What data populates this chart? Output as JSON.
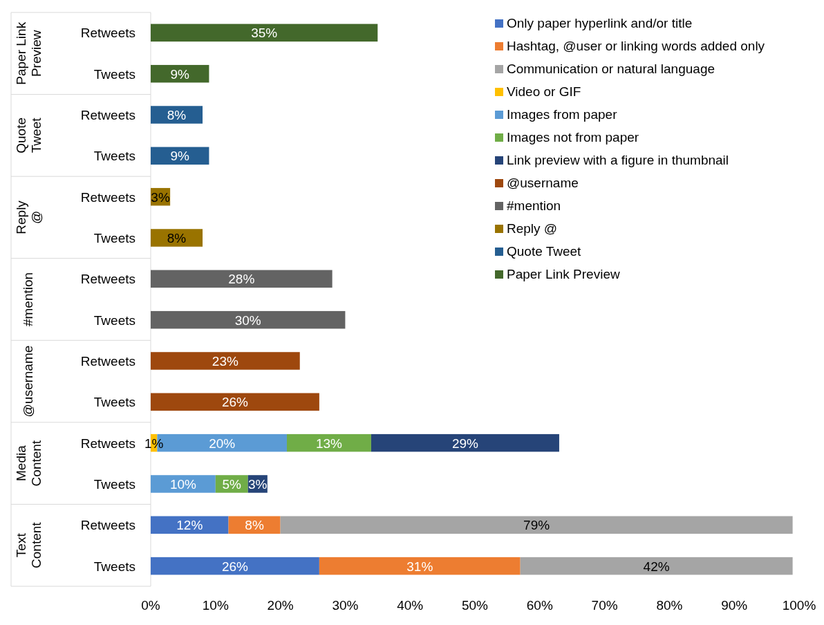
{
  "chart_data": {
    "type": "bar",
    "orientation": "horizontal",
    "stacked": true,
    "grid": false,
    "legend": "top right",
    "categories": [
      "Retweets",
      "Tweets",
      "Retweets",
      "Tweets",
      "Retweets",
      "Tweets",
      "Retweets",
      "Tweets",
      "Retweets",
      "Tweets",
      "Retweets",
      "Tweets",
      "Retweets",
      "Tweets"
    ],
    "annotations": [
      "Paper Link Preview",
      "Quote Tweet",
      "Reply @",
      "#mention",
      "@username",
      "Media Content",
      "Text Content"
    ],
    "xlim": [
      0,
      100
    ],
    "xticks": [
      {
        "value": 0,
        "label": "0%"
      },
      {
        "value": 10,
        "label": "10%"
      },
      {
        "value": 20,
        "label": "20%"
      },
      {
        "value": 30,
        "label": "30%"
      },
      {
        "value": 40,
        "label": "40%"
      },
      {
        "value": 50,
        "label": "50%"
      },
      {
        "value": 60,
        "label": "60%"
      },
      {
        "value": 70,
        "label": "70%"
      },
      {
        "value": 80,
        "label": "80%"
      },
      {
        "value": 90,
        "label": "90%"
      },
      {
        "value": 100,
        "label": "100%"
      }
    ],
    "series": [
      {
        "name": "Only paper hyperlink and/or title",
        "color": "#4472c4",
        "values": [
          null,
          null,
          null,
          null,
          null,
          null,
          null,
          null,
          null,
          null,
          null,
          null,
          12,
          26
        ],
        "value_labels": [
          null,
          null,
          null,
          null,
          null,
          null,
          null,
          null,
          null,
          null,
          null,
          null,
          "12%",
          "26%"
        ]
      },
      {
        "name": "Hashtag, @user or linking words added only",
        "color": "#ed7d31",
        "values": [
          null,
          null,
          null,
          null,
          null,
          null,
          null,
          null,
          null,
          null,
          null,
          null,
          8,
          31
        ],
        "value_labels": [
          null,
          null,
          null,
          null,
          null,
          null,
          null,
          null,
          null,
          null,
          null,
          null,
          "8%",
          "31%"
        ]
      },
      {
        "name": "Communication or natural language",
        "color": "#a5a5a5",
        "values": [
          null,
          null,
          null,
          null,
          null,
          null,
          null,
          null,
          null,
          null,
          null,
          null,
          79,
          42
        ],
        "value_labels": [
          null,
          null,
          null,
          null,
          null,
          null,
          null,
          null,
          null,
          null,
          null,
          null,
          "79%",
          "42%"
        ]
      },
      {
        "name": "Video or GIF",
        "color": "#ffc000",
        "values": [
          null,
          null,
          null,
          null,
          null,
          null,
          null,
          null,
          null,
          null,
          1,
          null,
          null,
          null
        ],
        "value_labels": [
          null,
          null,
          null,
          null,
          null,
          null,
          null,
          null,
          null,
          null,
          "1%",
          null,
          null,
          null
        ]
      },
      {
        "name": "Images from paper",
        "color": "#5b9bd5",
        "values": [
          null,
          null,
          null,
          null,
          null,
          null,
          null,
          null,
          null,
          null,
          20,
          10,
          null,
          null
        ],
        "value_labels": [
          null,
          null,
          null,
          null,
          null,
          null,
          null,
          null,
          null,
          null,
          "20%",
          "10%",
          null,
          null
        ]
      },
      {
        "name": "Images not from paper",
        "color": "#70ad47",
        "values": [
          null,
          null,
          null,
          null,
          null,
          null,
          null,
          null,
          null,
          null,
          13,
          5,
          null,
          null
        ],
        "value_labels": [
          null,
          null,
          null,
          null,
          null,
          null,
          null,
          null,
          null,
          null,
          "13%",
          "5%",
          null,
          null
        ]
      },
      {
        "name": "Link preview with a figure in thumbnail",
        "color": "#264478",
        "values": [
          null,
          null,
          null,
          null,
          null,
          null,
          null,
          null,
          null,
          null,
          29,
          3,
          null,
          null
        ],
        "value_labels": [
          null,
          null,
          null,
          null,
          null,
          null,
          null,
          null,
          null,
          null,
          "29%",
          "3%",
          null,
          null
        ]
      },
      {
        "name": "@username",
        "color": "#9e480e",
        "values": [
          null,
          null,
          null,
          null,
          null,
          null,
          null,
          null,
          23,
          26,
          null,
          null,
          null,
          null
        ],
        "value_labels": [
          null,
          null,
          null,
          null,
          null,
          null,
          null,
          null,
          "23%",
          "26%",
          null,
          null,
          null,
          null
        ]
      },
      {
        "name": "#mention",
        "color": "#636363",
        "values": [
          null,
          null,
          null,
          null,
          null,
          null,
          28,
          30,
          null,
          null,
          null,
          null,
          null,
          null
        ],
        "value_labels": [
          null,
          null,
          null,
          null,
          null,
          null,
          "28%",
          "30%",
          null,
          null,
          null,
          null,
          null,
          null
        ]
      },
      {
        "name": "Reply @",
        "color": "#997300",
        "values": [
          null,
          null,
          null,
          null,
          3,
          8,
          null,
          null,
          null,
          null,
          null,
          null,
          null,
          null
        ],
        "value_labels": [
          null,
          null,
          null,
          null,
          "3%",
          "8%",
          null,
          null,
          null,
          null,
          null,
          null,
          null,
          null
        ]
      },
      {
        "name": "Quote Tweet",
        "color": "#255e91",
        "values": [
          null,
          null,
          8,
          9,
          null,
          null,
          null,
          null,
          null,
          null,
          null,
          null,
          null,
          null
        ],
        "value_labels": [
          null,
          null,
          "8%",
          "9%",
          null,
          null,
          null,
          null,
          null,
          null,
          null,
          null,
          null,
          null
        ]
      },
      {
        "name": "Paper Link Preview",
        "color": "#43682b",
        "values": [
          35,
          9,
          null,
          null,
          null,
          null,
          null,
          null,
          null,
          null,
          null,
          null,
          null,
          null
        ],
        "value_labels": [
          "35%",
          "9%",
          null,
          null,
          null,
          null,
          null,
          null,
          null,
          null,
          null,
          null,
          null,
          null
        ]
      }
    ]
  }
}
